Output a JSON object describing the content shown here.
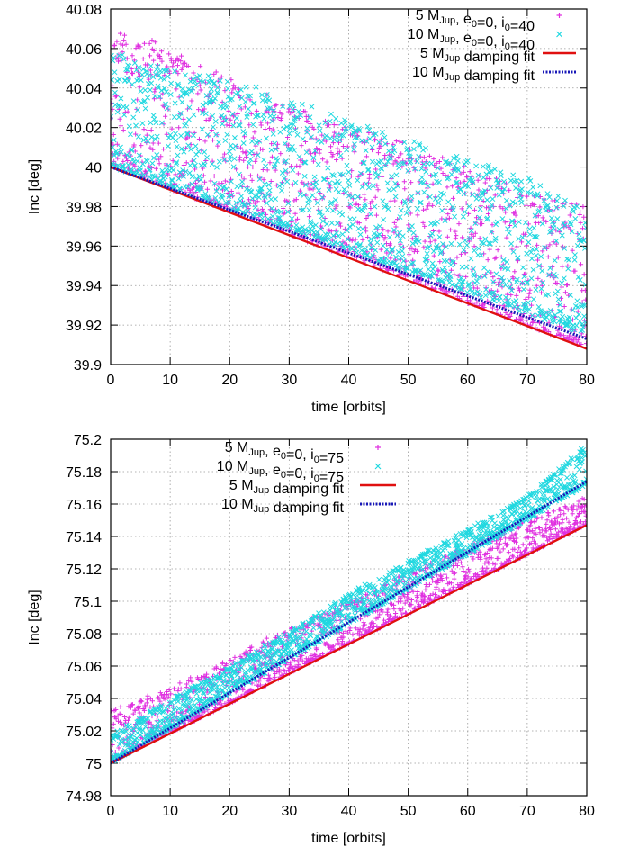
{
  "chart_data": [
    {
      "type": "scatter",
      "xlabel": "time [orbits]",
      "ylabel": "Inc [deg]",
      "xlim": [
        0,
        80
      ],
      "ylim": [
        39.9,
        40.08
      ],
      "xticks": [
        "0",
        "10",
        "20",
        "30",
        "40",
        "50",
        "60",
        "70",
        "80"
      ],
      "yticks": [
        "39.9",
        "39.92",
        "39.94",
        "39.96",
        "39.98",
        "40",
        "40.02",
        "40.04",
        "40.06",
        "40.08"
      ],
      "grid": true,
      "legend_position": "top-right",
      "series": [
        {
          "name": "5 M_Jup, e_0=0, i_0=40",
          "legend": {
            "p1": "5 M",
            "s1": "Jup",
            "p2": ", e",
            "s2": "0",
            "p3": "=0, i",
            "s3": "0",
            "p4": "=40"
          },
          "kind": "points",
          "marker": "+",
          "color": "#e030e0",
          "band_lower": [
            [
              0,
              40.0
            ],
            [
              80,
              39.908
            ]
          ],
          "band_upper": [
            [
              0,
              40.072
            ],
            [
              5,
              40.067
            ],
            [
              10,
              40.062
            ],
            [
              20,
              40.045
            ],
            [
              30,
              40.032
            ],
            [
              40,
              40.022
            ],
            [
              50,
              40.012
            ],
            [
              60,
              40.002
            ],
            [
              70,
              39.99
            ],
            [
              80,
              39.982
            ]
          ]
        },
        {
          "name": "10 M_Jup, e_0=0, i_0=40",
          "legend": {
            "p1": "10 M",
            "s1": "Jup",
            "p2": ", e",
            "s2": "0",
            "p3": "=0, i",
            "s3": "0",
            "p4": "=40"
          },
          "kind": "points",
          "marker": "x",
          "color": "#20d8e0",
          "band_lower": [
            [
              0,
              40.0
            ],
            [
              80,
              39.915
            ]
          ],
          "band_upper": [
            [
              0,
              40.06
            ],
            [
              5,
              40.055
            ],
            [
              10,
              40.05
            ],
            [
              20,
              40.045
            ],
            [
              30,
              40.035
            ],
            [
              40,
              40.025
            ],
            [
              50,
              40.015
            ],
            [
              60,
              40.005
            ],
            [
              70,
              39.995
            ],
            [
              80,
              39.98
            ]
          ]
        },
        {
          "name": "5 M_Jup damping fit",
          "legend": {
            "p1": "5 M",
            "s1": "Jup",
            "p2": " damping fit"
          },
          "kind": "line",
          "style": "solid",
          "color": "#e01010",
          "x": [
            0,
            80
          ],
          "y": [
            40.0,
            39.908
          ]
        },
        {
          "name": "10 M_Jup damping fit",
          "legend": {
            "p1": "10 M",
            "s1": "Jup",
            "p2": " damping fit"
          },
          "kind": "line",
          "style": "dotted",
          "color": "#1818b8",
          "x": [
            0,
            80
          ],
          "y": [
            40.0,
            39.913
          ]
        }
      ]
    },
    {
      "type": "scatter",
      "xlabel": "time [orbits]",
      "ylabel": "Inc [deg]",
      "xlim": [
        0,
        80
      ],
      "ylim": [
        74.98,
        75.2
      ],
      "xticks": [
        "0",
        "10",
        "20",
        "30",
        "40",
        "50",
        "60",
        "70",
        "80"
      ],
      "yticks": [
        "74.98",
        "75",
        "75.02",
        "75.04",
        "75.06",
        "75.08",
        "75.1",
        "75.12",
        "75.14",
        "75.16",
        "75.18",
        "75.2"
      ],
      "grid": true,
      "legend_position": "top-left",
      "series": [
        {
          "name": "5 M_Jup, e_0=0, i_0=75",
          "legend": {
            "p1": "5 M",
            "s1": "Jup",
            "p2": ", e",
            "s2": "0",
            "p3": "=0, i",
            "s3": "0",
            "p4": "=75"
          },
          "kind": "points",
          "marker": "+",
          "color": "#e030e0",
          "band_lower": [
            [
              0,
              75.0
            ],
            [
              80,
              75.147
            ]
          ],
          "band_upper": [
            [
              0,
              75.033
            ],
            [
              10,
              75.047
            ],
            [
              20,
              75.065
            ],
            [
              30,
              75.085
            ],
            [
              40,
              75.1
            ],
            [
              50,
              75.118
            ],
            [
              60,
              75.135
            ],
            [
              70,
              75.15
            ],
            [
              80,
              75.165
            ]
          ]
        },
        {
          "name": "10 M_Jup, e_0=0, i_0=75",
          "legend": {
            "p1": "10 M",
            "s1": "Jup",
            "p2": ", e",
            "s2": "0",
            "p3": "=0, i",
            "s3": "0",
            "p4": "=75"
          },
          "kind": "points",
          "marker": "x",
          "color": "#20d8e0",
          "band_lower": [
            [
              0,
              75.0
            ],
            [
              80,
              75.172
            ]
          ],
          "band_upper": [
            [
              0,
              75.018
            ],
            [
              10,
              75.04
            ],
            [
              20,
              75.06
            ],
            [
              30,
              75.082
            ],
            [
              40,
              75.105
            ],
            [
              50,
              75.125
            ],
            [
              60,
              75.145
            ],
            [
              70,
              75.165
            ],
            [
              80,
              75.198
            ]
          ]
        },
        {
          "name": "5 M_Jup damping fit",
          "legend": {
            "p1": "5 M",
            "s1": "Jup",
            "p2": " damping fit"
          },
          "kind": "line",
          "style": "solid",
          "color": "#e01010",
          "x": [
            0,
            80
          ],
          "y": [
            75.0,
            75.147
          ]
        },
        {
          "name": "10 M_Jup damping fit",
          "legend": {
            "p1": "10 M",
            "s1": "Jup",
            "p2": " damping fit"
          },
          "kind": "line",
          "style": "dotted",
          "color": "#1818b8",
          "x": [
            0,
            80
          ],
          "y": [
            75.0,
            75.174
          ]
        }
      ]
    }
  ]
}
